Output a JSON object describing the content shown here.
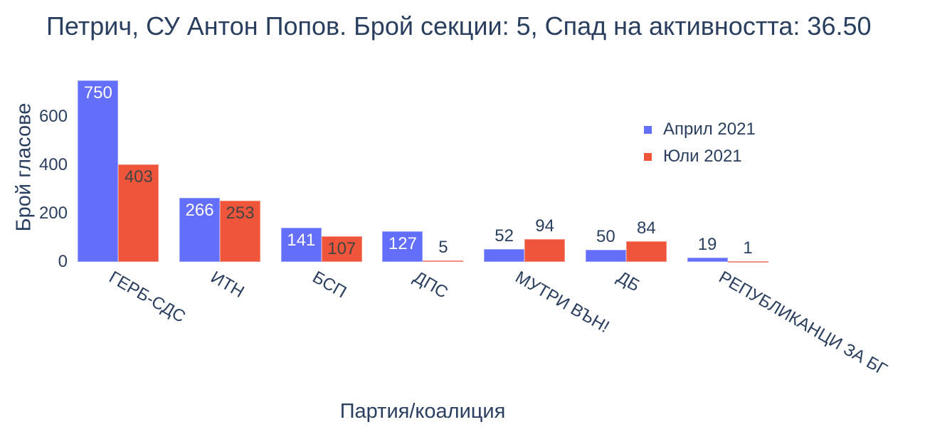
{
  "chart_data": {
    "type": "bar",
    "title": "Петрич, СУ Антон Попов. Брой секции: 5,  Спад на активността: 36.50",
    "xlabel": "Партия/коалиция",
    "ylabel": "Брой гласове",
    "categories": [
      "ГЕРБ-СДС",
      "ИТН",
      "БСП",
      "ДПС",
      "МУТРИ ВЪН!",
      "ДБ",
      "РЕПУБЛИКАНЦИ ЗА БГ"
    ],
    "series": [
      {
        "name": "Април 2021",
        "color": "#636efa",
        "values": [
          750,
          266,
          141,
          127,
          52,
          50,
          19
        ]
      },
      {
        "name": "Юли 2021",
        "color": "#ef553b",
        "values": [
          403,
          253,
          107,
          5,
          94,
          84,
          1
        ]
      }
    ],
    "yticks": [
      0,
      200,
      400,
      600
    ],
    "ylim": [
      0,
      789
    ],
    "grid": false,
    "legend_position": "upper-right-inside",
    "barmode": "group"
  }
}
